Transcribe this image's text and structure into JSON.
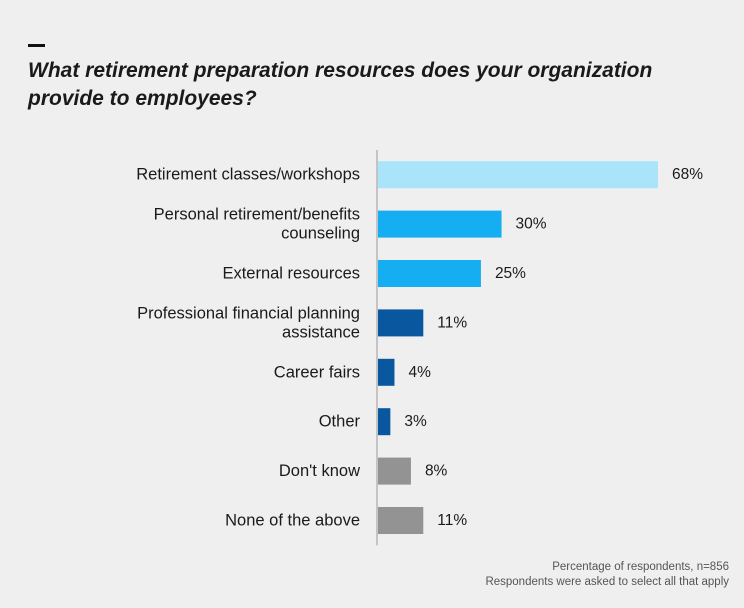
{
  "title": "What retirement preparation resources does your organization provide to employees?",
  "footnote": {
    "line1": "Percentage of respondents, n=856",
    "line2": "Respondents were asked to select all that apply"
  },
  "colors": {
    "light_blue": "#a9e4fb",
    "bright_blue": "#16aef2",
    "dark_blue": "#08579f",
    "gray": "#939393"
  },
  "chart_data": {
    "type": "bar",
    "orientation": "horizontal",
    "categories": [
      [
        "Retirement classes/workshops"
      ],
      [
        "Personal retirement/benefits",
        "counseling"
      ],
      [
        "External resources"
      ],
      [
        "Professional financial planning",
        "assistance"
      ],
      [
        "Career fairs"
      ],
      [
        "Other"
      ],
      [
        "Don't know"
      ],
      [
        "None of the above"
      ]
    ],
    "values": [
      68,
      30,
      25,
      11,
      4,
      3,
      8,
      11
    ],
    "value_labels": [
      "68%",
      "30%",
      "25%",
      "11%",
      "4%",
      "3%",
      "8%",
      "11%"
    ],
    "bar_colors": [
      "#a9e4fb",
      "#16aef2",
      "#16aef2",
      "#08579f",
      "#08579f",
      "#08579f",
      "#939393",
      "#939393"
    ],
    "unit": "%",
    "xlim": [
      0,
      68
    ],
    "grid": false,
    "legend": "none"
  }
}
